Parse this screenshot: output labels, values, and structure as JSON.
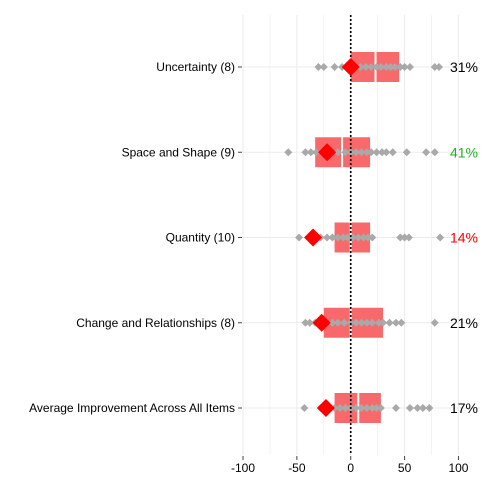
{
  "chart_data": {
    "type": "box-dot",
    "xlim": [
      -100,
      120
    ],
    "xticks": [
      -100,
      -50,
      0,
      50,
      100
    ],
    "xtick_labels": [
      "-100",
      "-50",
      "0",
      "50",
      "100"
    ],
    "grid": true,
    "reference_line_x": 0,
    "colors": {
      "box": "#F8696B",
      "box_divider": "#ffffff",
      "points": "#A9A9A9",
      "mean_marker": "#FF0000",
      "grid": "#EBEBEB",
      "pct_default": "#000000",
      "pct_high": "#22B222",
      "pct_low": "#FF0000"
    },
    "categories": [
      {
        "label": "Uncertainty (8)",
        "percent": "31%",
        "percent_color": "#000000",
        "box": {
          "q1": 0,
          "median": 23,
          "q3": 45
        },
        "mean": 0,
        "points": [
          -30,
          -25,
          -15,
          -8,
          -3,
          4,
          9,
          14,
          19,
          24,
          28,
          33,
          37,
          41,
          46,
          50,
          55,
          78,
          82
        ]
      },
      {
        "label": "Space and Shape (9)",
        "percent": "41%",
        "percent_color": "#22B222",
        "box": {
          "q1": -33,
          "median": -8,
          "q3": 18
        },
        "mean": -22,
        "points": [
          -58,
          -42,
          -37,
          -32,
          -27,
          -18,
          -12,
          -5,
          0,
          5,
          10,
          15,
          19,
          24,
          29,
          33,
          39,
          52,
          70,
          78
        ]
      },
      {
        "label": "Quantity (10)",
        "percent": "14%",
        "percent_color": "#FF0000",
        "box": {
          "q1": -15,
          "median": 0,
          "q3": 18
        },
        "mean": -35,
        "points": [
          -48,
          -38,
          -28,
          -22,
          -17,
          -12,
          -7,
          -3,
          2,
          7,
          12,
          16,
          20,
          46,
          50,
          54,
          83
        ]
      },
      {
        "label": "Change and Relationships (8)",
        "percent": "21%",
        "percent_color": "#000000",
        "box": {
          "q1": -25,
          "median": 0,
          "q3": 30
        },
        "mean": -27,
        "points": [
          -42,
          -38,
          -33,
          -23,
          -17,
          -12,
          -6,
          0,
          5,
          10,
          15,
          20,
          26,
          30,
          36,
          42,
          47,
          78
        ]
      },
      {
        "label": "Average Improvement Across All Items",
        "percent": "17%",
        "percent_color": "#000000",
        "box": {
          "q1": -15,
          "median": 7,
          "q3": 28
        },
        "mean": -23,
        "points": [
          -43,
          -28,
          -20,
          -15,
          -10,
          -5,
          0,
          5,
          10,
          15,
          20,
          24,
          28,
          42,
          55,
          62,
          67,
          73
        ]
      }
    ]
  }
}
